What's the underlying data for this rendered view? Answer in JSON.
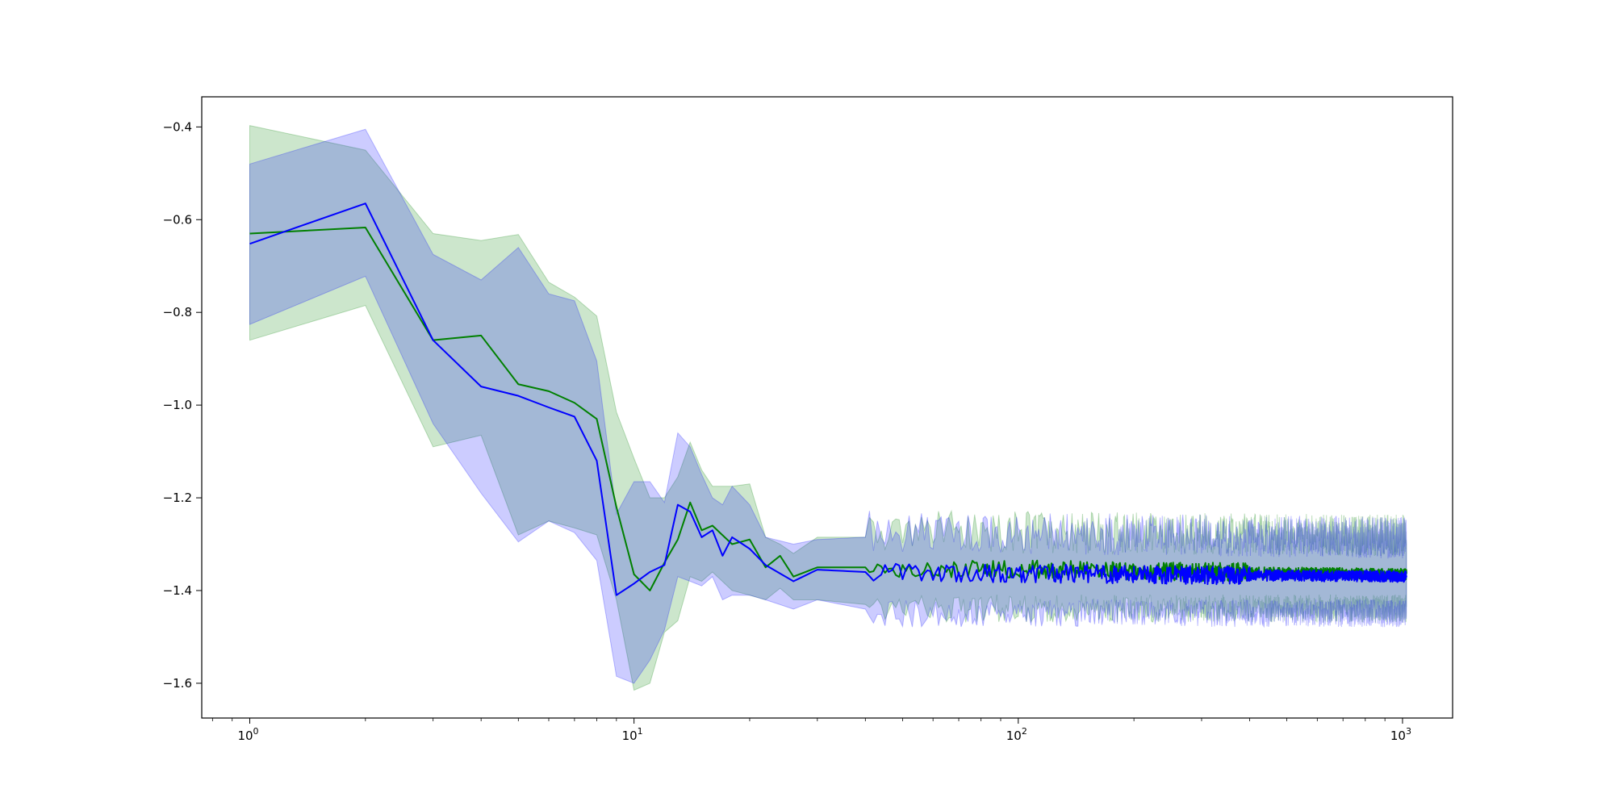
{
  "chart_data": {
    "type": "line",
    "title": "",
    "xlabel": "",
    "ylabel": "",
    "xscale": "log",
    "xlim": [
      0.75,
      1350
    ],
    "ylim": [
      -1.675,
      -0.335
    ],
    "grid": false,
    "legend": "none",
    "x_ticks": [
      {
        "value": 1,
        "base": "10",
        "exp": "0"
      },
      {
        "value": 10,
        "base": "10",
        "exp": "1"
      },
      {
        "value": 100,
        "base": "10",
        "exp": "2"
      },
      {
        "value": 1000,
        "base": "10",
        "exp": "3"
      }
    ],
    "y_ticks": [
      {
        "value": -0.4,
        "label": "−0.4"
      },
      {
        "value": -0.6,
        "label": "−0.6"
      },
      {
        "value": -0.8,
        "label": "−0.8"
      },
      {
        "value": -1.0,
        "label": "−1.0"
      },
      {
        "value": -1.2,
        "label": "−1.2"
      },
      {
        "value": -1.4,
        "label": "−1.4"
      },
      {
        "value": -1.6,
        "label": "−1.6"
      }
    ],
    "series": [
      {
        "color": "#008000",
        "band_color": "#008000",
        "band_opacity": 0.2,
        "x_end": 1024,
        "points": [
          [
            1,
            -0.63,
            -0.397,
            -0.86
          ],
          [
            2,
            -0.617,
            -0.45,
            -0.785
          ],
          [
            3,
            -0.86,
            -0.63,
            -1.09
          ],
          [
            4,
            -0.85,
            -0.645,
            -1.065
          ],
          [
            5,
            -0.955,
            -0.632,
            -1.28
          ],
          [
            6,
            -0.97,
            -0.735,
            -1.25
          ],
          [
            7,
            -0.995,
            -0.767,
            -1.265
          ],
          [
            8,
            -1.03,
            -0.808,
            -1.28
          ],
          [
            9,
            -1.22,
            -1.015,
            -1.42
          ],
          [
            10,
            -1.365,
            -1.115,
            -1.615
          ],
          [
            11,
            -1.4,
            -1.2,
            -1.6
          ],
          [
            12,
            -1.34,
            -1.2,
            -1.49
          ],
          [
            13,
            -1.29,
            -1.155,
            -1.465
          ],
          [
            14,
            -1.21,
            -1.08,
            -1.37
          ],
          [
            15,
            -1.27,
            -1.14,
            -1.38
          ],
          [
            16,
            -1.26,
            -1.175,
            -1.36
          ],
          [
            18,
            -1.3,
            -1.175,
            -1.4
          ],
          [
            20,
            -1.29,
            -1.17,
            -1.41
          ],
          [
            22,
            -1.35,
            -1.285,
            -1.42
          ],
          [
            24,
            -1.325,
            -1.3,
            -1.395
          ],
          [
            26,
            -1.37,
            -1.32,
            -1.42
          ],
          [
            30,
            -1.35,
            -1.285,
            -1.42
          ],
          [
            40,
            -1.35,
            -1.285,
            -1.43
          ],
          [
            1024,
            -1.365,
            -1.295,
            -1.43
          ]
        ]
      },
      {
        "color": "#0000ff",
        "band_color": "#0000ff",
        "band_opacity": 0.2,
        "x_end": 1024,
        "points": [
          [
            1,
            -0.652,
            -0.48,
            -0.826
          ],
          [
            2,
            -0.565,
            -0.405,
            -0.722
          ],
          [
            3,
            -0.86,
            -0.675,
            -1.04
          ],
          [
            4,
            -0.96,
            -0.73,
            -1.19
          ],
          [
            5,
            -0.98,
            -0.66,
            -1.295
          ],
          [
            6,
            -1.005,
            -0.76,
            -1.25
          ],
          [
            7,
            -1.025,
            -0.775,
            -1.275
          ],
          [
            8,
            -1.12,
            -0.905,
            -1.335
          ],
          [
            9,
            -1.41,
            -1.235,
            -1.585
          ],
          [
            10,
            -1.385,
            -1.165,
            -1.6
          ],
          [
            11,
            -1.36,
            -1.165,
            -1.55
          ],
          [
            12,
            -1.345,
            -1.21,
            -1.485
          ],
          [
            13,
            -1.215,
            -1.06,
            -1.37
          ],
          [
            14,
            -1.23,
            -1.09,
            -1.38
          ],
          [
            15,
            -1.285,
            -1.15,
            -1.39
          ],
          [
            16,
            -1.27,
            -1.2,
            -1.37
          ],
          [
            17,
            -1.325,
            -1.215,
            -1.42
          ],
          [
            18,
            -1.285,
            -1.175,
            -1.41
          ],
          [
            20,
            -1.31,
            -1.215,
            -1.41
          ],
          [
            22,
            -1.345,
            -1.285,
            -1.42
          ],
          [
            26,
            -1.38,
            -1.3,
            -1.44
          ],
          [
            30,
            -1.355,
            -1.29,
            -1.42
          ],
          [
            40,
            -1.36,
            -1.285,
            -1.44
          ],
          [
            1024,
            -1.37,
            -1.3,
            -1.44
          ]
        ]
      }
    ]
  }
}
